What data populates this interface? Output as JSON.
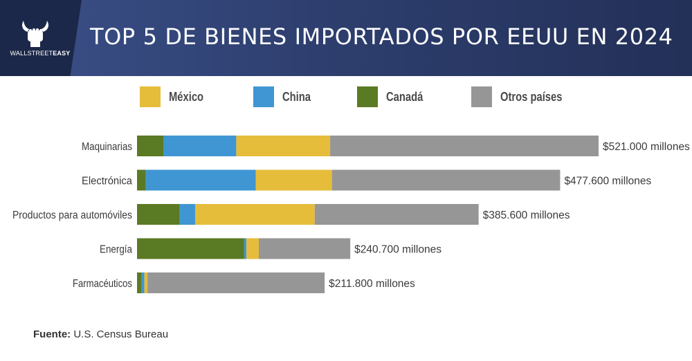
{
  "header": {
    "title": "TOP 5 DE BIENES IMPORTADOS POR EEUU EN 2024",
    "brand_light": "WALLSTREET",
    "brand_bold": "EASY",
    "logo_icon": "bull-fist-icon"
  },
  "colors": {
    "mexico": "#e6bc3b",
    "china": "#3f96d3",
    "canada": "#5b7a24",
    "otros": "#969696"
  },
  "chart_data": {
    "type": "bar",
    "orientation": "horizontal",
    "stacked": true,
    "title": "TOP 5 DE BIENES IMPORTADOS POR EEUU EN 2024",
    "unit": "millones de USD",
    "legend": [
      "México",
      "China",
      "Canadá",
      "Otros países"
    ],
    "legend_position": "top",
    "categories": [
      "Maquinarias",
      "Electrónica",
      "Productos para automóviles",
      "Energía",
      "Farmacéuticos"
    ],
    "series": [
      {
        "name": "Canadá",
        "key": "canada",
        "values": [
          30000,
          10000,
          48000,
          121000,
          5000
        ]
      },
      {
        "name": "China",
        "key": "china",
        "values": [
          82000,
          124000,
          17600,
          2500,
          3300
        ]
      },
      {
        "name": "México",
        "key": "mexico",
        "values": [
          106000,
          86000,
          135000,
          14000,
          3500
        ]
      },
      {
        "name": "Otros países",
        "key": "otros",
        "values": [
          303000,
          257600,
          185000,
          103200,
          200000
        ]
      }
    ],
    "totals": [
      521000,
      477600,
      385600,
      240700,
      211800
    ],
    "total_labels": [
      "$521.000 millones",
      "$477.600 millones",
      "$385.600 millones",
      "$240.700 millones",
      "$211.800 millones"
    ],
    "xlim": [
      0,
      521000
    ],
    "grid": false
  },
  "footer": {
    "source_label": "Fuente:",
    "source_value": "U.S. Census Bureau"
  }
}
